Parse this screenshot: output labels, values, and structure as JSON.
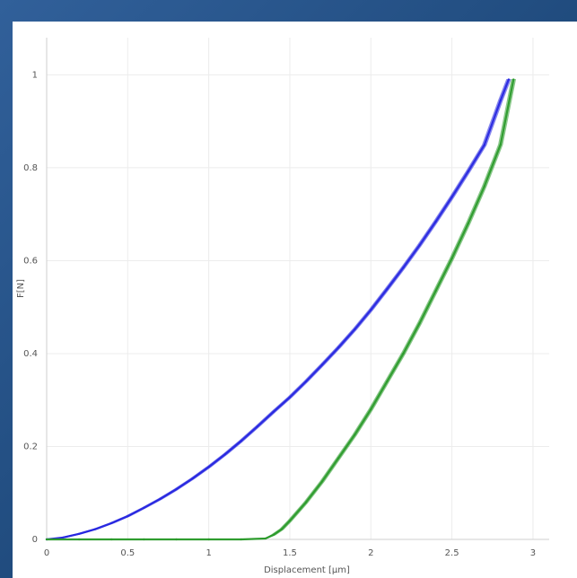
{
  "chart_data": {
    "type": "line",
    "title": "",
    "xlabel": "Displacement [µm]",
    "ylabel": "F[N]",
    "xlim": [
      0,
      3.1
    ],
    "ylim": [
      0,
      1.08
    ],
    "x_ticks": [
      0,
      0.5,
      1,
      1.5,
      2,
      2.5,
      3
    ],
    "x_tick_labels": [
      "0",
      "0.5",
      "1",
      "1.5",
      "2",
      "2.5",
      "3"
    ],
    "y_ticks": [
      0,
      0.2,
      0.4,
      0.6,
      0.8,
      1
    ],
    "y_tick_labels": [
      "0",
      "0.2",
      "0.4",
      "0.6",
      "0.8",
      "1"
    ],
    "grid": true,
    "legend": "none",
    "series": [
      {
        "color": "#2626e0",
        "x": [
          0,
          0.1,
          0.2,
          0.3,
          0.4,
          0.5,
          0.6,
          0.7,
          0.8,
          0.9,
          1.0,
          1.1,
          1.2,
          1.3,
          1.4,
          1.5,
          1.6,
          1.7,
          1.8,
          1.9,
          2.0,
          2.1,
          2.2,
          2.3,
          2.4,
          2.5,
          2.6,
          2.7,
          2.8,
          2.85
        ],
        "y": [
          0,
          0.004,
          0.012,
          0.022,
          0.035,
          0.05,
          0.068,
          0.087,
          0.108,
          0.131,
          0.156,
          0.183,
          0.212,
          0.243,
          0.275,
          0.306,
          0.34,
          0.376,
          0.413,
          0.452,
          0.494,
          0.539,
          0.585,
          0.633,
          0.684,
          0.737,
          0.792,
          0.849,
          0.945,
          0.99
        ]
      },
      {
        "color": "#2a9a2a",
        "x": [
          0,
          0.2,
          0.4,
          0.6,
          0.8,
          1.0,
          1.2,
          1.35,
          1.4,
          1.45,
          1.5,
          1.6,
          1.7,
          1.8,
          1.9,
          2.0,
          2.1,
          2.2,
          2.3,
          2.4,
          2.5,
          2.6,
          2.7,
          2.8,
          2.88
        ],
        "y": [
          0,
          0,
          0,
          0,
          0,
          0,
          0,
          0.002,
          0.01,
          0.022,
          0.04,
          0.08,
          0.125,
          0.175,
          0.225,
          0.28,
          0.34,
          0.4,
          0.465,
          0.535,
          0.605,
          0.68,
          0.76,
          0.85,
          0.99
        ]
      }
    ]
  }
}
